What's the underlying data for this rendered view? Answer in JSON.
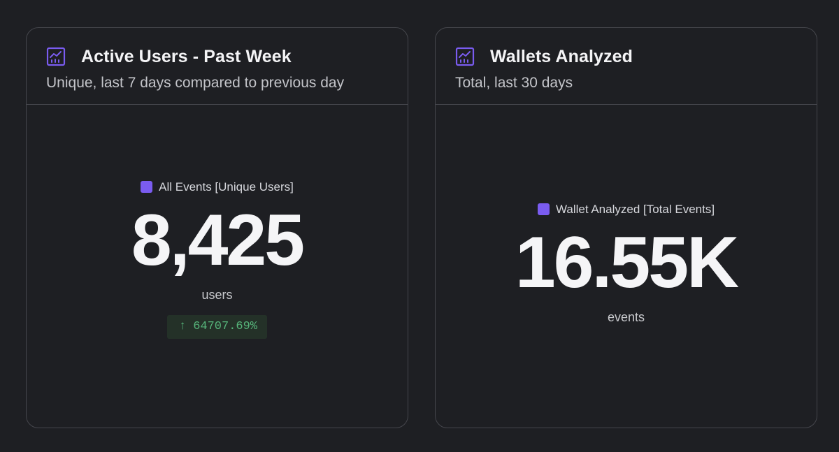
{
  "cards": [
    {
      "title": "Active Users - Past Week",
      "subtitle": "Unique, last 7 days compared to previous day",
      "icon": "chart-icon",
      "legend": "All Events [Unique Users]",
      "value": "8,425",
      "unit": "users",
      "delta": {
        "arrow": "↑",
        "value": "64707.69%",
        "direction": "up",
        "color": "#56b47a"
      }
    },
    {
      "title": "Wallets Analyzed",
      "subtitle": "Total, last 30 days",
      "icon": "chart-icon",
      "legend": "Wallet Analyzed [Total Events]",
      "value": "16.55K",
      "unit": "events"
    }
  ],
  "colors": {
    "accent": "#7a5cf0",
    "background": "#1e1f23",
    "border": "#45464c",
    "positive": "#56b47a"
  }
}
